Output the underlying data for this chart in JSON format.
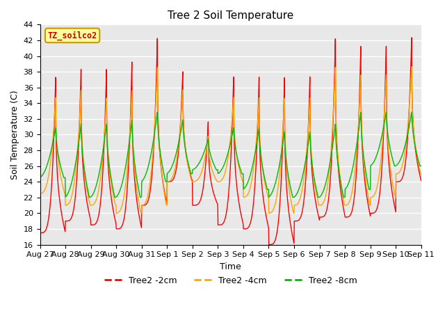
{
  "title": "Tree 2 Soil Temperature",
  "xlabel": "Time",
  "ylabel": "Soil Temperature (C)",
  "legend_label": "TZ_soilco2",
  "ylim": [
    16,
    44
  ],
  "yticks": [
    16,
    18,
    20,
    22,
    24,
    26,
    28,
    30,
    32,
    34,
    36,
    38,
    40,
    42,
    44
  ],
  "x_tick_labels": [
    "Aug 27",
    "Aug 28",
    "Aug 29",
    "Aug 30",
    "Aug 31",
    "Sep 1",
    "Sep 2",
    "Sep 3",
    "Sep 4",
    "Sep 5",
    "Sep 6",
    "Sep 7",
    "Sep 8",
    "Sep 9",
    "Sep 10",
    "Sep 11"
  ],
  "series_labels": [
    "Tree2 -2cm",
    "Tree2 -4cm",
    "Tree2 -8cm"
  ],
  "series_colors": [
    "#ff0000",
    "#ffa500",
    "#00bb00"
  ],
  "background_color": "#e8e8e8",
  "grid_color": "#ffffff",
  "legend_box_color": "#ffff99",
  "legend_box_edge": "#cc9900",
  "peak2": [
    38,
    39,
    39,
    40,
    43,
    38.5,
    32,
    38,
    38,
    38,
    38,
    43,
    42,
    42,
    43
  ],
  "trough2": [
    17.5,
    19,
    18.5,
    18,
    21,
    24,
    21,
    18.5,
    18,
    16,
    19,
    19.5,
    19.5,
    20,
    24
  ],
  "peak4": [
    35,
    36,
    35,
    36,
    39,
    36,
    30,
    35,
    35,
    35,
    35,
    39,
    38,
    38,
    39
  ],
  "trough4": [
    22.5,
    21,
    21,
    20,
    21,
    24,
    24,
    24,
    22,
    20,
    21,
    21,
    21,
    22,
    25
  ],
  "peak8": [
    31,
    31.5,
    31.5,
    32,
    33,
    32,
    29.5,
    31,
    31,
    30.5,
    30.5,
    31.5,
    33,
    33,
    33
  ],
  "trough8": [
    24.5,
    22,
    22,
    22,
    24,
    25,
    25.5,
    25,
    23,
    22,
    22,
    22,
    23,
    26,
    26
  ],
  "n_days": 15,
  "pts_per_day": 96
}
